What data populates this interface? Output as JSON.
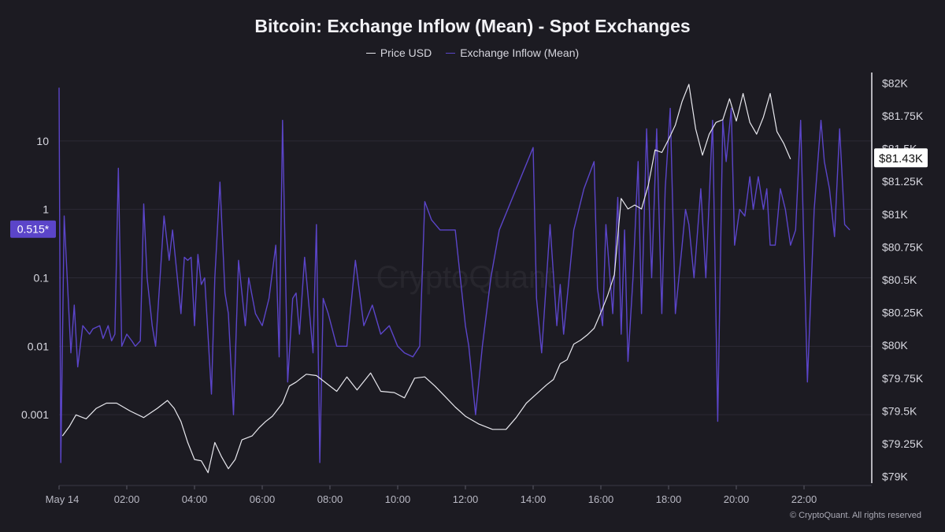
{
  "title": "Bitcoin: Exchange Inflow (Mean) - Spot Exchanges",
  "copyright": "© CryptoQuant. All rights reserved",
  "watermark": "CryptoQuant",
  "colors": {
    "background": "#1c1b22",
    "grid": "#2c2b35",
    "price": "#e8e8ee",
    "inflow": "#5b45c9",
    "left_badge": "#5b45c9",
    "right_badge": "#ffffff",
    "axis_text": "#d8d8e0"
  },
  "chart_data": {
    "type": "line",
    "title": "Bitcoin: Exchange Inflow (Mean) - Spot Exchanges",
    "legend_position": "top-center",
    "grid": true,
    "x_ticks": [
      "May 14",
      "02:00",
      "04:00",
      "06:00",
      "08:00",
      "10:00",
      "12:00",
      "14:00",
      "16:00",
      "18:00",
      "20:00",
      "22:00"
    ],
    "x_range_hours": [
      0,
      24
    ],
    "y_left": {
      "scale": "log",
      "ticks": [
        "0.001",
        "0.01",
        "0.1",
        "1",
        "10"
      ],
      "range": [
        0.0001,
        100
      ],
      "current_value_label": "0.515*",
      "current_value": 0.515
    },
    "y_right": {
      "ticks": [
        "$79K",
        "$79.25K",
        "$79.5K",
        "$79.75K",
        "$80K",
        "$80.25K",
        "$80.5K",
        "$80.75K",
        "$81K",
        "$81.25K",
        "$81.5K",
        "$81.75K",
        "$82K"
      ],
      "range": [
        78950,
        82080
      ],
      "current_value_label": "$81.43K",
      "current_value": 81430
    },
    "series": [
      {
        "name": "Price USD",
        "axis": "right",
        "points": [
          [
            0.1,
            79310
          ],
          [
            0.3,
            79380
          ],
          [
            0.5,
            79470
          ],
          [
            0.8,
            79440
          ],
          [
            1.1,
            79520
          ],
          [
            1.4,
            79560
          ],
          [
            1.7,
            79560
          ],
          [
            2.1,
            79500
          ],
          [
            2.5,
            79450
          ],
          [
            2.9,
            79520
          ],
          [
            3.2,
            79580
          ],
          [
            3.4,
            79520
          ],
          [
            3.6,
            79420
          ],
          [
            3.8,
            79260
          ],
          [
            4.0,
            79130
          ],
          [
            4.2,
            79120
          ],
          [
            4.4,
            79030
          ],
          [
            4.6,
            79260
          ],
          [
            4.8,
            79150
          ],
          [
            5.0,
            79060
          ],
          [
            5.2,
            79130
          ],
          [
            5.4,
            79280
          ],
          [
            5.7,
            79310
          ],
          [
            5.9,
            79370
          ],
          [
            6.1,
            79420
          ],
          [
            6.3,
            79460
          ],
          [
            6.6,
            79560
          ],
          [
            6.8,
            79690
          ],
          [
            7.0,
            79720
          ],
          [
            7.3,
            79780
          ],
          [
            7.6,
            79770
          ],
          [
            7.9,
            79710
          ],
          [
            8.2,
            79650
          ],
          [
            8.5,
            79760
          ],
          [
            8.8,
            79660
          ],
          [
            9.2,
            79790
          ],
          [
            9.5,
            79650
          ],
          [
            9.9,
            79640
          ],
          [
            10.2,
            79600
          ],
          [
            10.5,
            79750
          ],
          [
            10.8,
            79760
          ],
          [
            11.1,
            79690
          ],
          [
            11.4,
            79610
          ],
          [
            11.7,
            79530
          ],
          [
            12.0,
            79460
          ],
          [
            12.4,
            79400
          ],
          [
            12.8,
            79360
          ],
          [
            13.2,
            79360
          ],
          [
            13.5,
            79450
          ],
          [
            13.8,
            79560
          ],
          [
            14.1,
            79630
          ],
          [
            14.4,
            79700
          ],
          [
            14.6,
            79740
          ],
          [
            14.8,
            79860
          ],
          [
            15.0,
            79890
          ],
          [
            15.2,
            80010
          ],
          [
            15.4,
            80040
          ],
          [
            15.6,
            80080
          ],
          [
            15.8,
            80130
          ],
          [
            16.0,
            80250
          ],
          [
            16.2,
            80380
          ],
          [
            16.4,
            80540
          ],
          [
            16.6,
            81120
          ],
          [
            16.8,
            81040
          ],
          [
            17.0,
            81070
          ],
          [
            17.2,
            81040
          ],
          [
            17.4,
            81220
          ],
          [
            17.6,
            81490
          ],
          [
            17.8,
            81470
          ],
          [
            18.0,
            81570
          ],
          [
            18.2,
            81680
          ],
          [
            18.4,
            81860
          ],
          [
            18.6,
            81990
          ],
          [
            18.8,
            81650
          ],
          [
            19.0,
            81450
          ],
          [
            19.2,
            81610
          ],
          [
            19.4,
            81700
          ],
          [
            19.6,
            81720
          ],
          [
            19.8,
            81880
          ],
          [
            20.0,
            81710
          ],
          [
            20.2,
            81920
          ],
          [
            20.4,
            81700
          ],
          [
            20.6,
            81610
          ],
          [
            20.8,
            81740
          ],
          [
            21.0,
            81920
          ],
          [
            21.2,
            81630
          ],
          [
            21.4,
            81540
          ],
          [
            21.6,
            81420
          ]
        ]
      },
      {
        "name": "Exchange Inflow (Mean)",
        "axis": "left",
        "points": [
          [
            0.0,
            60
          ],
          [
            0.05,
            0.0002
          ],
          [
            0.15,
            0.8
          ],
          [
            0.35,
            0.008
          ],
          [
            0.45,
            0.04
          ],
          [
            0.55,
            0.005
          ],
          [
            0.7,
            0.02
          ],
          [
            0.9,
            0.015
          ],
          [
            1.0,
            0.018
          ],
          [
            1.2,
            0.02
          ],
          [
            1.3,
            0.013
          ],
          [
            1.45,
            0.02
          ],
          [
            1.55,
            0.012
          ],
          [
            1.65,
            0.015
          ],
          [
            1.75,
            4
          ],
          [
            1.85,
            0.01
          ],
          [
            2.0,
            0.015
          ],
          [
            2.15,
            0.012
          ],
          [
            2.25,
            0.01
          ],
          [
            2.4,
            0.012
          ],
          [
            2.5,
            1.2
          ],
          [
            2.6,
            0.1
          ],
          [
            2.75,
            0.02
          ],
          [
            2.85,
            0.01
          ],
          [
            3.1,
            0.8
          ],
          [
            3.25,
            0.18
          ],
          [
            3.35,
            0.5
          ],
          [
            3.6,
            0.03
          ],
          [
            3.7,
            0.2
          ],
          [
            3.8,
            0.18
          ],
          [
            3.9,
            0.2
          ],
          [
            4.0,
            0.02
          ],
          [
            4.1,
            0.22
          ],
          [
            4.2,
            0.08
          ],
          [
            4.3,
            0.1
          ],
          [
            4.5,
            0.002
          ],
          [
            4.6,
            0.1
          ],
          [
            4.75,
            2.5
          ],
          [
            4.9,
            0.06
          ],
          [
            5.0,
            0.03
          ],
          [
            5.15,
            0.001
          ],
          [
            5.3,
            0.18
          ],
          [
            5.5,
            0.02
          ],
          [
            5.6,
            0.1
          ],
          [
            5.8,
            0.03
          ],
          [
            6.0,
            0.02
          ],
          [
            6.2,
            0.05
          ],
          [
            6.4,
            0.3
          ],
          [
            6.5,
            0.007
          ],
          [
            6.6,
            20
          ],
          [
            6.75,
            0.003
          ],
          [
            6.9,
            0.05
          ],
          [
            7.0,
            0.06
          ],
          [
            7.1,
            0.015
          ],
          [
            7.25,
            0.2
          ],
          [
            7.4,
            0.03
          ],
          [
            7.5,
            0.008
          ],
          [
            7.6,
            0.6
          ],
          [
            7.7,
            0.0002
          ],
          [
            7.8,
            0.05
          ],
          [
            7.95,
            0.03
          ],
          [
            8.2,
            0.01
          ],
          [
            8.5,
            0.01
          ],
          [
            8.75,
            0.18
          ],
          [
            9.0,
            0.02
          ],
          [
            9.25,
            0.04
          ],
          [
            9.5,
            0.015
          ],
          [
            9.75,
            0.02
          ],
          [
            10.0,
            0.01
          ],
          [
            10.2,
            0.008
          ],
          [
            10.45,
            0.007
          ],
          [
            10.65,
            0.01
          ],
          [
            10.8,
            1.3
          ],
          [
            11.0,
            0.7
          ],
          [
            11.25,
            0.5
          ],
          [
            11.5,
            0.5
          ],
          [
            11.7,
            0.5
          ],
          [
            12.0,
            0.02
          ],
          [
            12.1,
            0.01
          ],
          [
            12.3,
            0.001
          ],
          [
            12.5,
            0.01
          ],
          [
            12.75,
            0.1
          ],
          [
            13.0,
            0.5
          ],
          [
            13.5,
            2
          ],
          [
            14.0,
            8
          ],
          [
            14.1,
            0.05
          ],
          [
            14.25,
            0.008
          ],
          [
            14.5,
            0.6
          ],
          [
            14.7,
            0.02
          ],
          [
            14.8,
            0.08
          ],
          [
            14.9,
            0.015
          ],
          [
            15.2,
            0.5
          ],
          [
            15.5,
            2
          ],
          [
            15.8,
            5
          ],
          [
            15.9,
            0.07
          ],
          [
            16.05,
            0.02
          ],
          [
            16.15,
            0.6
          ],
          [
            16.35,
            0.03
          ],
          [
            16.5,
            1.5
          ],
          [
            16.6,
            0.015
          ],
          [
            16.7,
            0.5
          ],
          [
            16.8,
            0.006
          ],
          [
            16.95,
            0.1
          ],
          [
            17.1,
            5
          ],
          [
            17.2,
            0.03
          ],
          [
            17.35,
            15
          ],
          [
            17.5,
            0.1
          ],
          [
            17.65,
            15
          ],
          [
            17.8,
            0.03
          ],
          [
            17.9,
            2
          ],
          [
            18.05,
            30
          ],
          [
            18.2,
            0.03
          ],
          [
            18.4,
            0.3
          ],
          [
            18.5,
            1
          ],
          [
            18.6,
            0.6
          ],
          [
            18.75,
            0.1
          ],
          [
            18.95,
            2
          ],
          [
            19.1,
            0.1
          ],
          [
            19.3,
            20
          ],
          [
            19.45,
            0.0008
          ],
          [
            19.6,
            20
          ],
          [
            19.7,
            5
          ],
          [
            19.85,
            30
          ],
          [
            19.95,
            0.3
          ],
          [
            20.1,
            1
          ],
          [
            20.25,
            0.8
          ],
          [
            20.4,
            3
          ],
          [
            20.5,
            1
          ],
          [
            20.65,
            3
          ],
          [
            20.8,
            1
          ],
          [
            20.9,
            2
          ],
          [
            21.0,
            0.3
          ],
          [
            21.15,
            0.3
          ],
          [
            21.3,
            2
          ],
          [
            21.45,
            1
          ],
          [
            21.6,
            0.3
          ],
          [
            21.75,
            0.5
          ],
          [
            21.9,
            20
          ],
          [
            22.1,
            0.003
          ],
          [
            22.3,
            1
          ],
          [
            22.5,
            20
          ],
          [
            22.6,
            5
          ],
          [
            22.75,
            2
          ],
          [
            22.9,
            0.4
          ],
          [
            23.05,
            15
          ],
          [
            23.2,
            0.6
          ],
          [
            23.35,
            0.5
          ]
        ]
      }
    ]
  }
}
